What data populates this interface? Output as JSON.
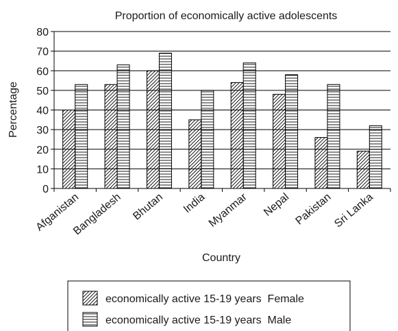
{
  "chart_data": {
    "type": "bar",
    "title": "Proportion of economically active adolescents",
    "xlabel": "Country",
    "ylabel": "Percentage",
    "ylim": [
      0,
      80
    ],
    "yticks": [
      0,
      10,
      20,
      30,
      40,
      50,
      60,
      70,
      80
    ],
    "grid": true,
    "legend_position": "bottom",
    "categories": [
      "Afganistan",
      "Bangladesh",
      "Bhutan",
      "India",
      "Myanmar",
      "Nepal",
      "Pakistan",
      "Sri Lanka"
    ],
    "series": [
      {
        "name": "economically active 15-19 years  Female",
        "pattern": "diagonal-hatch",
        "values": [
          40,
          53,
          60,
          35,
          54,
          48,
          26,
          19
        ]
      },
      {
        "name": "economically active 15-19 years  Male",
        "pattern": "horizontal-lines",
        "values": [
          53,
          63,
          69,
          50,
          64,
          58,
          53,
          32
        ]
      }
    ]
  }
}
